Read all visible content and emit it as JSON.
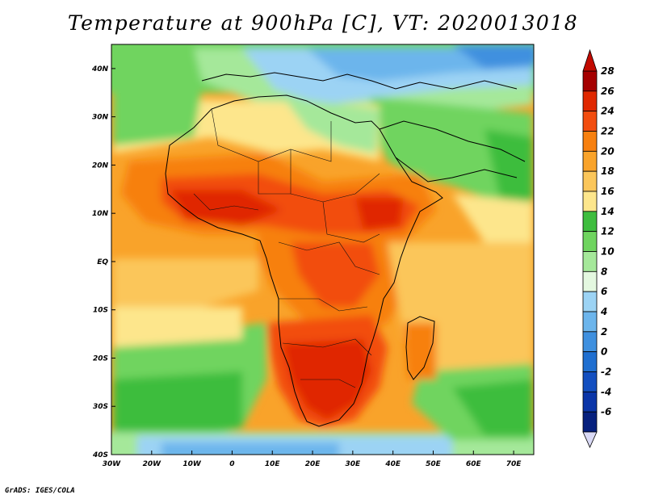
{
  "title": "Temperature at 900hPa [C], VT: 2020013018",
  "credit": "GrADS: IGES/COLA",
  "map": {
    "lon_range": [
      -30,
      75
    ],
    "lat_range": [
      -40,
      45
    ],
    "lon_ticks": [
      "30W",
      "20W",
      "10W",
      "0",
      "10E",
      "20E",
      "30E",
      "40E",
      "50E",
      "60E",
      "70E"
    ],
    "lat_ticks": [
      "40S",
      "30S",
      "20S",
      "10S",
      "EQ",
      "10N",
      "20N",
      "30N",
      "40N"
    ],
    "variable": "Temperature",
    "level": "900hPa",
    "units": "C",
    "valid_time": "2020013018"
  },
  "colorbar": {
    "labels": [
      "28",
      "26",
      "24",
      "22",
      "20",
      "18",
      "16",
      "14",
      "12",
      "10",
      "8",
      "6",
      "4",
      "2",
      "0",
      "-2",
      "-4",
      "-6"
    ],
    "colors": [
      "#a50000",
      "#e02800",
      "#f24d0f",
      "#f7800f",
      "#f9a32a",
      "#fbc65a",
      "#fde68c",
      "#3ebd3e",
      "#6fd45f",
      "#a5e89a",
      "#e4f8e0",
      "#9cd3f4",
      "#6cb5ec",
      "#3f90df",
      "#1f6fd0",
      "#134fc0",
      "#0a35a8",
      "#06207e"
    ],
    "top_arrow_color": "#c20a00",
    "bottom_arrow_color": "#d9d9f5"
  }
}
